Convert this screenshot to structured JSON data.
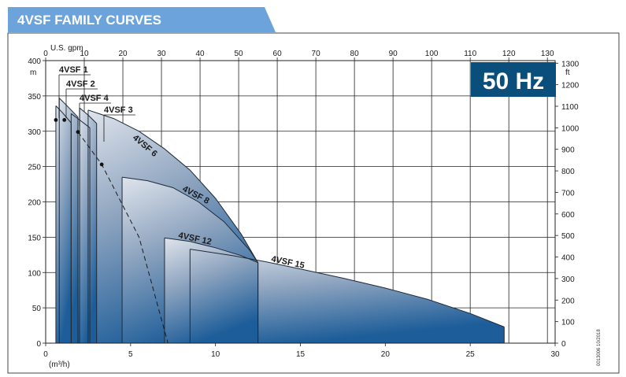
{
  "header": {
    "title": "4VSF FAMILY CURVES",
    "frequency_badge": "50 Hz",
    "reference_code": "0013006 10/2018"
  },
  "colors": {
    "title_band": "#6ba3da",
    "badge": "#0a4f7c",
    "curve_top": "#dfe4ec",
    "curve_bottom": "#1d5d99"
  },
  "chart_data": {
    "type": "area",
    "x_primary": {
      "label": "(m³/h)",
      "range": [
        0,
        30
      ],
      "ticks": [
        0,
        5,
        10,
        15,
        20,
        25,
        30
      ]
    },
    "x_secondary": {
      "label": "U.S. gpm",
      "range": [
        0,
        132
      ],
      "ticks": [
        0,
        10,
        20,
        30,
        40,
        50,
        60,
        70,
        80,
        90,
        100,
        110,
        120,
        130
      ]
    },
    "y_primary": {
      "label": "m",
      "range": [
        0,
        400
      ],
      "ticks": [
        0,
        50,
        100,
        150,
        200,
        250,
        300,
        350,
        400
      ]
    },
    "y_secondary": {
      "label": "ft",
      "range": [
        0,
        1312
      ],
      "ticks": [
        0,
        100,
        200,
        300,
        400,
        500,
        600,
        700,
        800,
        900,
        1000,
        1100,
        1200,
        1300
      ]
    },
    "grid": true,
    "series": [
      {
        "name": "4VSF 1",
        "q_min": 0.6,
        "q_max": 1.5,
        "points": [
          [
            0.6,
            336
          ],
          [
            1.0,
            326
          ],
          [
            1.5,
            312
          ]
        ]
      },
      {
        "name": "4VSF 2",
        "q_min": 0.8,
        "q_max": 1.9,
        "points": [
          [
            0.8,
            347
          ],
          [
            1.3,
            335
          ],
          [
            1.9,
            320
          ]
        ]
      },
      {
        "name": "4VSF 4",
        "q_min": 1.5,
        "q_max": 2.6,
        "points": [
          [
            1.5,
            325
          ],
          [
            2.0,
            316
          ],
          [
            2.6,
            305
          ]
        ]
      },
      {
        "name": "4VSF 3",
        "q_min": 2.0,
        "q_max": 3.0,
        "points": [
          [
            2.0,
            333
          ],
          [
            2.5,
            323
          ],
          [
            3.0,
            311
          ]
        ]
      },
      {
        "name": "4VSF 6",
        "q_min": 2.5,
        "q_max": 12.5,
        "points": [
          [
            2.5,
            330
          ],
          [
            4.0,
            318
          ],
          [
            5.5,
            300
          ],
          [
            7.0,
            275
          ],
          [
            8.5,
            245
          ],
          [
            10.0,
            205
          ],
          [
            11.5,
            155
          ],
          [
            12.5,
            114
          ]
        ]
      },
      {
        "name": "4VSF 8",
        "q_min": 4.5,
        "q_max": 12.5,
        "points": [
          [
            4.5,
            235
          ],
          [
            6.0,
            230
          ],
          [
            7.5,
            220
          ],
          [
            9.0,
            200
          ],
          [
            10.5,
            172
          ],
          [
            12.0,
            132
          ],
          [
            12.5,
            114
          ]
        ]
      },
      {
        "name": "4VSF 12",
        "q_min": 7.0,
        "q_max": 12.5,
        "points": [
          [
            7.0,
            149
          ],
          [
            8.5,
            144
          ],
          [
            10.0,
            135
          ],
          [
            11.5,
            124
          ],
          [
            12.5,
            114
          ]
        ]
      },
      {
        "name": "4VSF 15",
        "q_min": 8.5,
        "q_max": 27.0,
        "points": [
          [
            8.5,
            133
          ],
          [
            11.0,
            124
          ],
          [
            13.0,
            115
          ],
          [
            15.0,
            105
          ],
          [
            17.5,
            92
          ],
          [
            20.0,
            78
          ],
          [
            22.5,
            62
          ],
          [
            25.0,
            42
          ],
          [
            27.0,
            23
          ]
        ]
      }
    ],
    "bep_markers": [
      [
        0.6,
        316
      ],
      [
        1.1,
        316
      ],
      [
        1.9,
        299
      ],
      [
        3.3,
        253
      ]
    ],
    "bep_line": [
      [
        1.9,
        299
      ],
      [
        3.3,
        253
      ],
      [
        5.5,
        150
      ],
      [
        7.2,
        0
      ]
    ],
    "labels": [
      {
        "text": "4VSF 1"
      },
      {
        "text": "4VSF 2"
      },
      {
        "text": "4VSF 4"
      },
      {
        "text": "4VSF 3"
      },
      {
        "text": "4VSF 6"
      },
      {
        "text": "4VSF 8"
      },
      {
        "text": "4VSF 12"
      },
      {
        "text": "4VSF 15"
      }
    ]
  }
}
